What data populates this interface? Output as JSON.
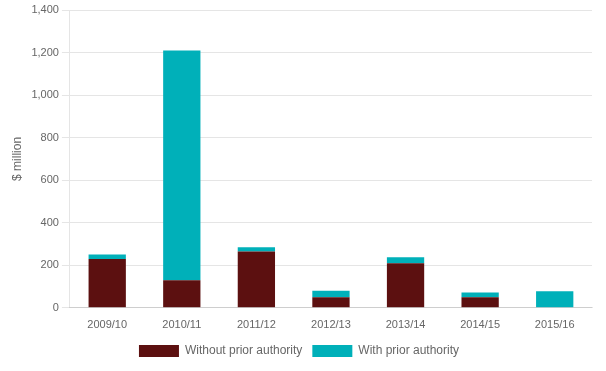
{
  "chart_data": {
    "type": "bar",
    "stacked": true,
    "categories": [
      "2009/10",
      "2010/11",
      "2011/12",
      "2012/13",
      "2013/14",
      "2014/15",
      "2015/16"
    ],
    "series": [
      {
        "name": "Without prior authority",
        "color": "#5c1010",
        "values": [
          230,
          130,
          265,
          50,
          210,
          50,
          0
        ]
      },
      {
        "name": "With prior authority",
        "color": "#00b0b9",
        "values": [
          20,
          1080,
          20,
          30,
          28,
          22,
          78
        ]
      }
    ],
    "ylabel": "$ million",
    "ylim": [
      0,
      1400
    ],
    "yticks": [
      0,
      200,
      400,
      600,
      800,
      {
        "value": 1000,
        "label": "1,000"
      },
      {
        "value": 1200,
        "label": "1,200"
      },
      {
        "value": 1400,
        "label": "1,400"
      }
    ],
    "grid": true,
    "legend": "bottom"
  }
}
